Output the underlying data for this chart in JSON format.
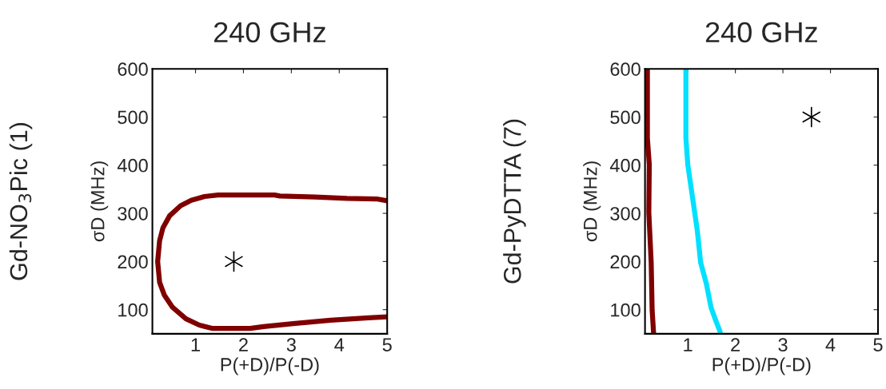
{
  "chart_data": [
    {
      "type": "line",
      "title": "240 GHz",
      "xlabel": "P(+D)/P(-D)",
      "ylabel": "σD (MHz)",
      "annotations": [
        "Gd-NO$_{3}$Pic (1)"
      ],
      "xlim": [
        0.1,
        5
      ],
      "ylim": [
        50,
        600
      ],
      "xticks": [
        1,
        2,
        3,
        4,
        5
      ],
      "yticks": [
        100,
        200,
        300,
        400,
        500,
        600
      ],
      "grid": false,
      "legend": false,
      "series": [
        {
          "color": "#800000",
          "x": [
            5,
            4.78,
            4.16,
            3.49,
            2.76,
            2.65,
            1.47,
            1.19,
            0.91,
            0.69,
            0.46,
            0.32,
            0.25,
            0.21,
            0.25,
            0.35,
            0.52,
            0.8,
            1.08,
            1.36,
            2.14,
            2.42,
            3.04,
            3.82,
            4.61,
            5
          ],
          "values": [
            326,
            330,
            331,
            334,
            336,
            338,
            338,
            335,
            327,
            316,
            295,
            270,
            243,
            200,
            157,
            130,
            105,
            81,
            68,
            61,
            61,
            65,
            71,
            78,
            83,
            85
          ]
        },
        {
          "type": "scatter",
          "marker": "cross",
          "color": "#000000",
          "x": [
            1.8
          ],
          "values": [
            200
          ]
        }
      ]
    },
    {
      "type": "line",
      "title": "240 GHz",
      "xlabel": "P(+D)/P(-D)",
      "ylabel": "σD (MHz)",
      "annotations": [
        "Gd-PyDTTA (7)"
      ],
      "xlim": [
        0.1,
        5
      ],
      "ylim": [
        50,
        600
      ],
      "xticks": [
        1,
        2,
        3,
        4,
        5
      ],
      "yticks": [
        100,
        200,
        300,
        400,
        500,
        600
      ],
      "grid": false,
      "legend": false,
      "series": [
        {
          "color": "#800000",
          "x": [
            0.15,
            0.15,
            0.19,
            0.18,
            0.23,
            0.25,
            0.28
          ],
          "values": [
            600,
            456,
            401,
            302,
            198,
            99,
            52
          ]
        },
        {
          "color": "#00e0ff",
          "x": [
            0.96,
            0.96,
            1.0,
            1.08,
            1.2,
            1.27,
            1.39,
            1.49,
            1.59,
            1.68
          ],
          "values": [
            600,
            456,
            401,
            346,
            264,
            198,
            154,
            104,
            77,
            54
          ]
        },
        {
          "type": "scatter",
          "marker": "cross",
          "color": "#000000",
          "x": [
            3.6
          ],
          "values": [
            500
          ]
        }
      ]
    }
  ]
}
